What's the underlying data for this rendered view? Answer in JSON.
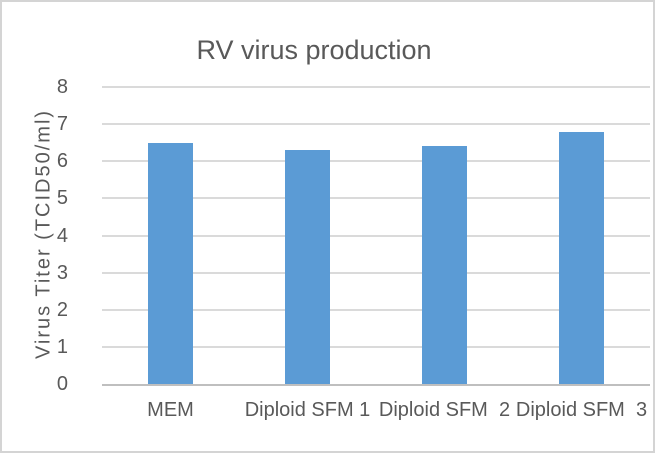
{
  "chart_data": {
    "type": "bar",
    "title": "RV virus production",
    "categories": [
      "MEM",
      "Diploid SFM 1",
      "Diploid SFM  2",
      "Diploid SFM  3"
    ],
    "values": [
      6.5,
      6.3,
      6.4,
      6.8
    ],
    "xlabel": "",
    "ylabel": "Virus Titer (TCID50/ml)",
    "ylim": [
      0,
      8
    ],
    "yticks": [
      0,
      1,
      2,
      3,
      4,
      5,
      6,
      7,
      8
    ],
    "grid": "horizontal",
    "legend": "none",
    "colors": {
      "bar": "#5b9bd5",
      "gridline": "#dadada",
      "axis_line": "#bfbfbf",
      "text": "#595959",
      "chart_border": "#d4d4d4",
      "background": "#ffffff"
    }
  }
}
